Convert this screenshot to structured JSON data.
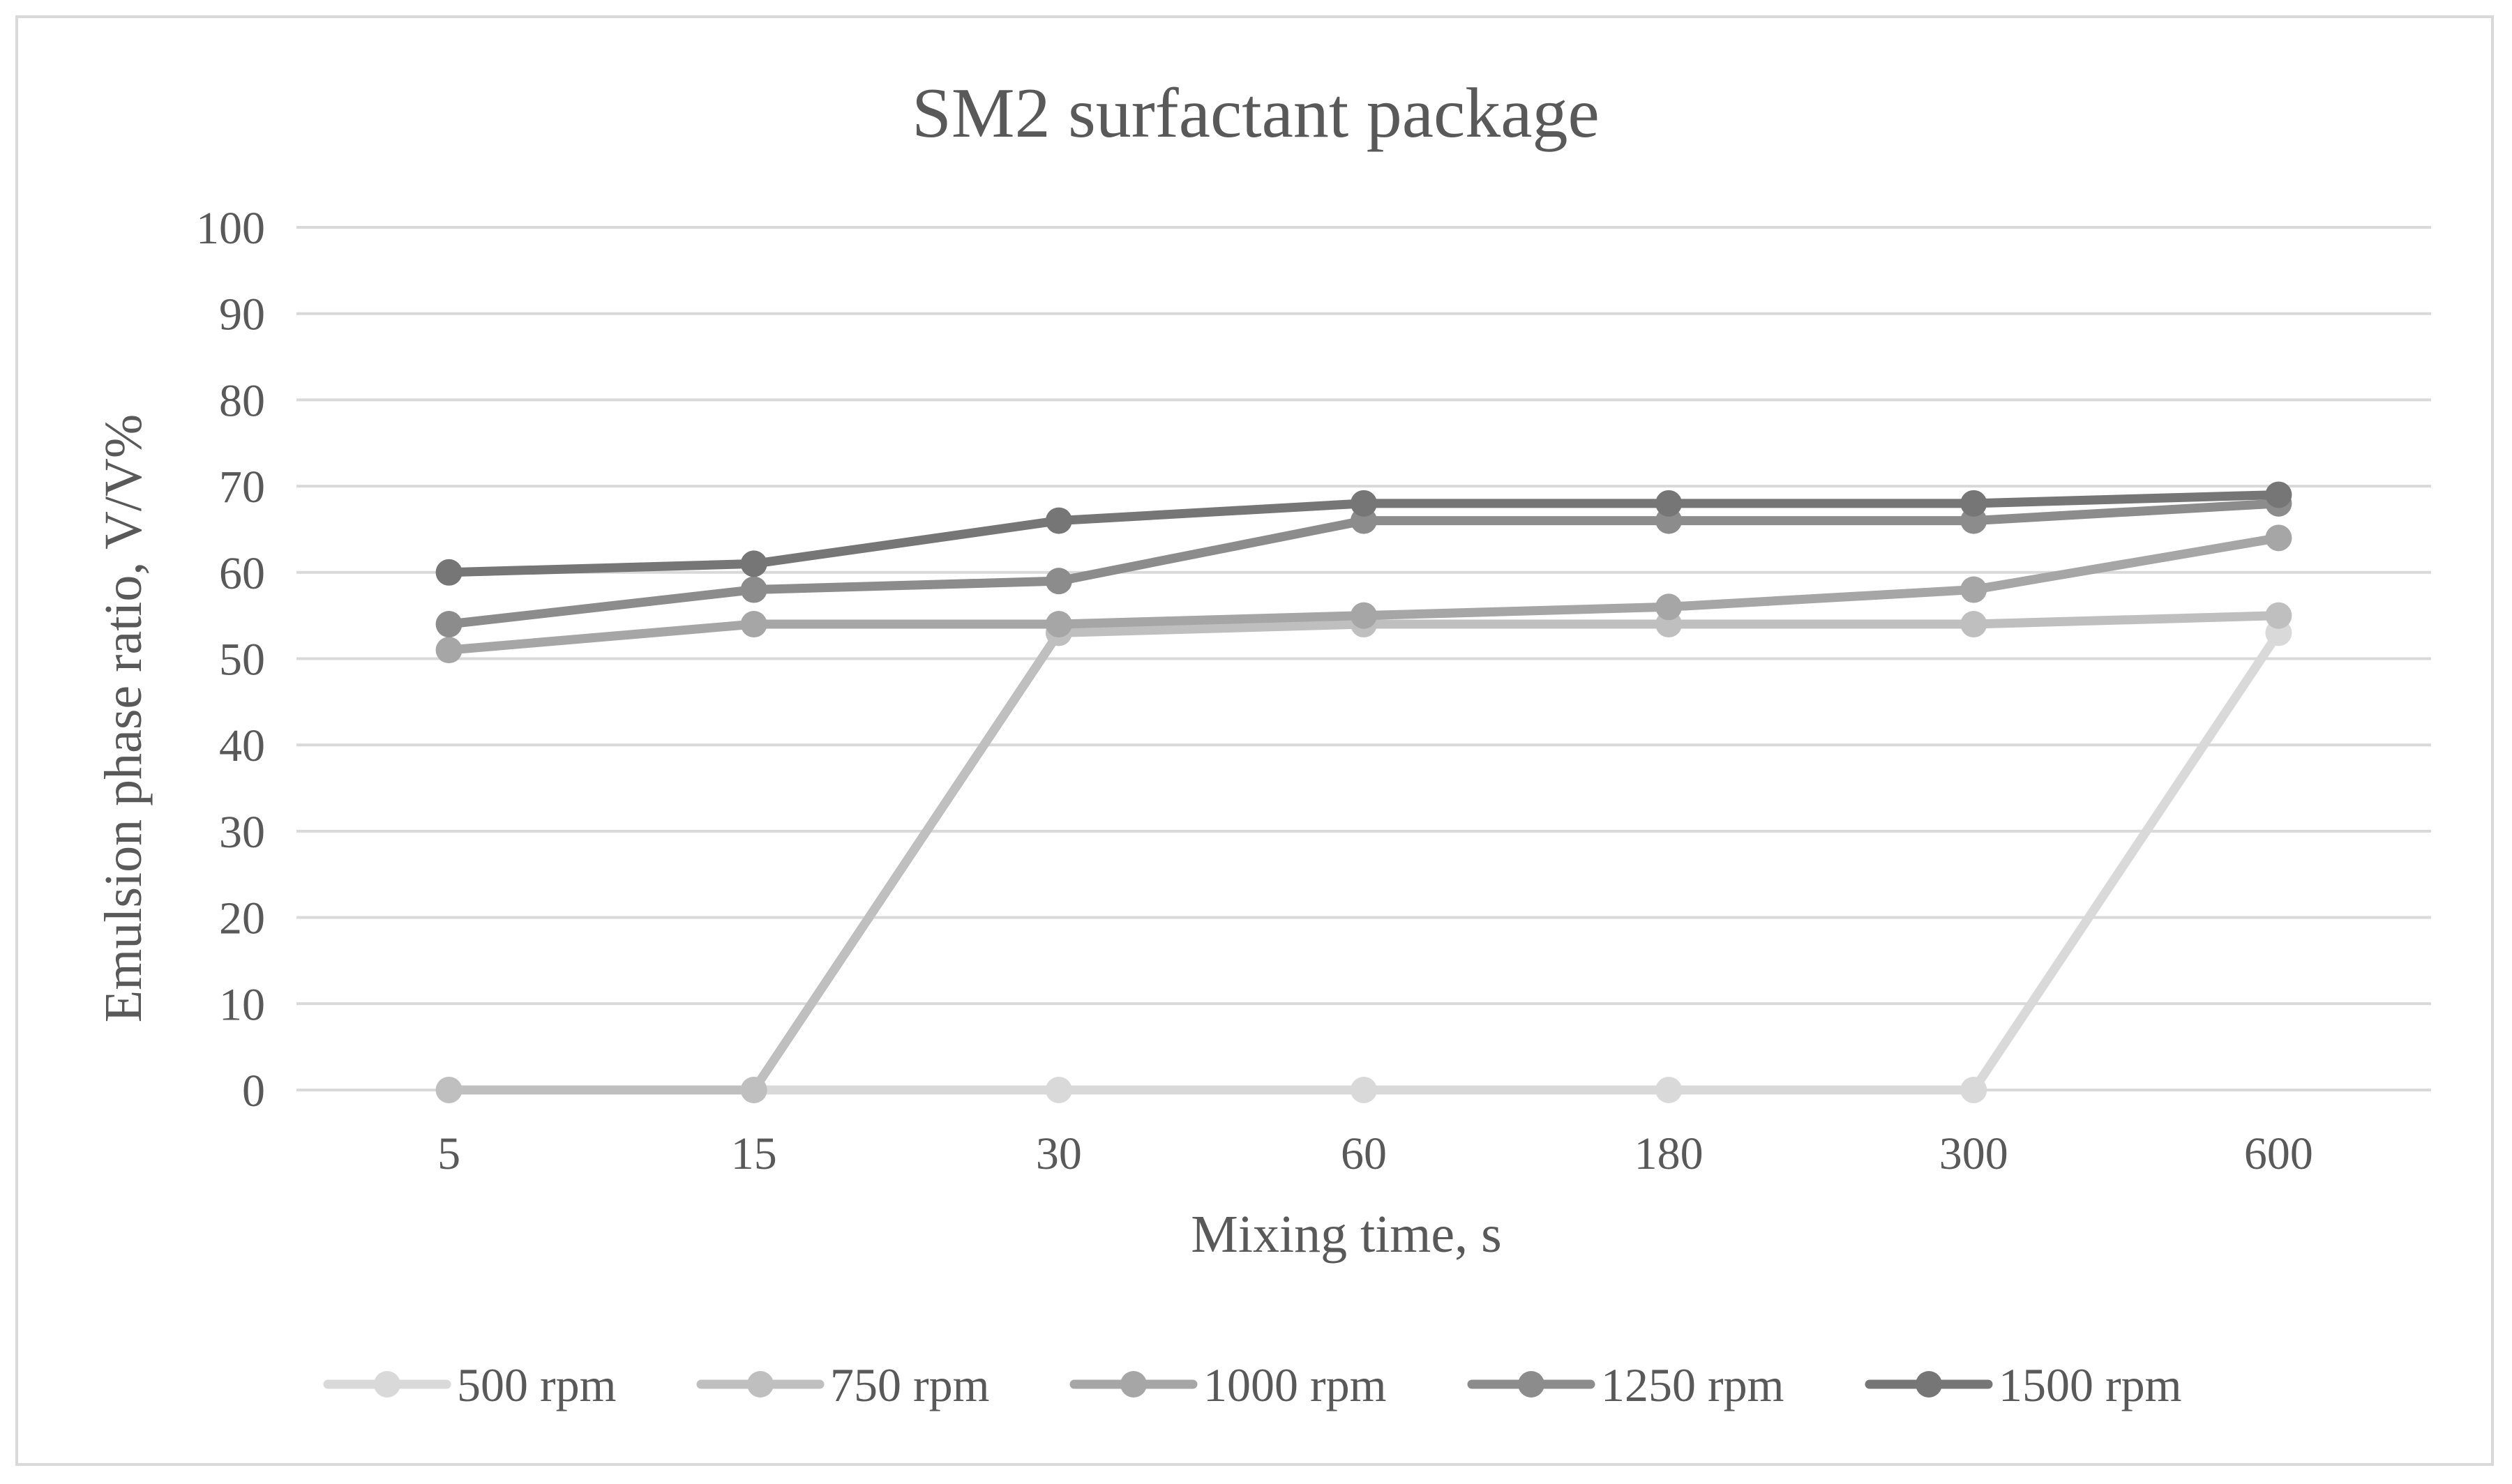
{
  "chart_data": {
    "type": "line",
    "title": "SM2 surfactant package",
    "xlabel": "Mixing time, s",
    "ylabel": "Emulsion phase ratio,  V/V%",
    "categories": [
      "5",
      "15",
      "30",
      "60",
      "180",
      "300",
      "600"
    ],
    "ylim": [
      0,
      100
    ],
    "yticks": [
      0,
      10,
      20,
      30,
      40,
      50,
      60,
      70,
      80,
      90,
      100
    ],
    "grid": true,
    "legend_position": "bottom",
    "series": [
      {
        "name": "500 rpm",
        "color": "#d9d9d9",
        "values": [
          0,
          0,
          0,
          0,
          0,
          0,
          53
        ]
      },
      {
        "name": "750 rpm",
        "color": "#bfbfbf",
        "values": [
          0,
          0,
          53,
          54,
          54,
          54,
          55
        ]
      },
      {
        "name": "1000 rpm",
        "color": "#a6a6a6",
        "values": [
          51,
          54,
          54,
          55,
          56,
          58,
          64
        ]
      },
      {
        "name": "1250 rpm",
        "color": "#8c8c8c",
        "values": [
          54,
          58,
          59,
          66,
          66,
          66,
          68
        ]
      },
      {
        "name": "1500 rpm",
        "color": "#767676",
        "values": [
          60,
          61,
          66,
          68,
          68,
          68,
          69
        ]
      }
    ]
  }
}
